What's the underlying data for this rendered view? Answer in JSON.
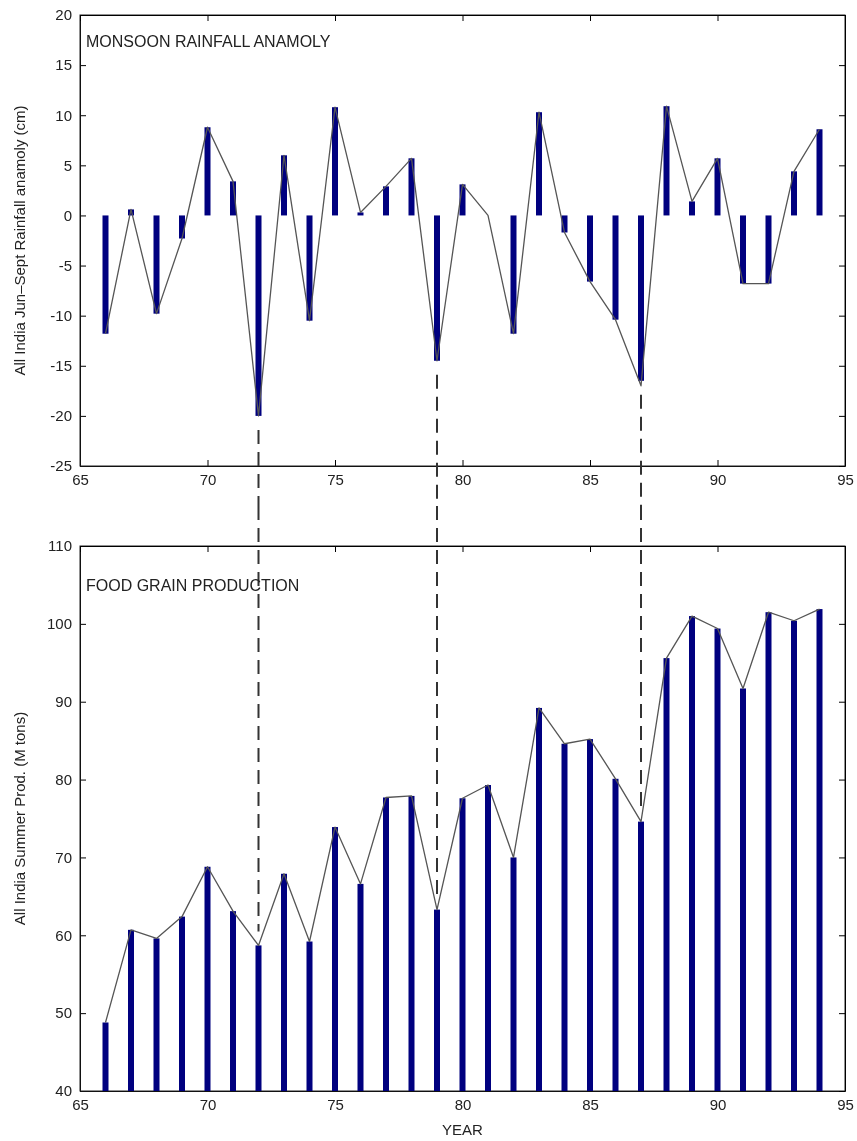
{
  "chart_data": [
    {
      "type": "bar",
      "title": "MONSOON RAINFALL ANAMOLY",
      "ylabel": "All India Jun–Sept Rainfall anamoly (cm)",
      "x": [
        66,
        67,
        68,
        69,
        70,
        71,
        72,
        73,
        74,
        75,
        76,
        77,
        78,
        79,
        80,
        81,
        82,
        83,
        84,
        85,
        86,
        87,
        88,
        89,
        90,
        91,
        92,
        93,
        94
      ],
      "xlim": [
        65,
        95
      ],
      "xticks": [
        65,
        70,
        75,
        80,
        85,
        90,
        95
      ],
      "ylim": [
        -25,
        20
      ],
      "yticks": [
        -25,
        -20,
        -15,
        -10,
        -5,
        0,
        5,
        10,
        15,
        20
      ],
      "series": [
        {
          "color": "#00007f",
          "values": [
            -11.8,
            0.6,
            -9.8,
            -2.3,
            8.8,
            3.4,
            -20,
            6,
            -10.5,
            10.8,
            0.3,
            2.9,
            5.7,
            -14.5,
            3.1,
            0,
            -11.8,
            10.3,
            -1.7,
            -6.6,
            -10.4,
            -16.5,
            10.9,
            1.4,
            5.7,
            -6.8,
            -6.8,
            4.4,
            8.6
          ]
        },
        {
          "type": "line",
          "color": "#555555",
          "values": [
            -11.8,
            0.6,
            -9.8,
            -2.3,
            8.8,
            3.4,
            -20,
            6,
            -10.5,
            10.8,
            0.3,
            2.9,
            5.7,
            -14.5,
            3.1,
            0,
            -11.8,
            10.3,
            -1.7,
            -6.6,
            -10.4,
            -17,
            10.9,
            1.4,
            5.7,
            -6.8,
            -6.8,
            4.4,
            8.6
          ]
        }
      ],
      "ref_lines": [
        {
          "axis": "x",
          "value": 72,
          "line_style": "dashed",
          "color": "#333333"
        },
        {
          "axis": "x",
          "value": 79,
          "line_style": "dashed",
          "color": "#333333"
        },
        {
          "axis": "x",
          "value": 87,
          "line_style": "dashed",
          "color": "#333333"
        }
      ]
    },
    {
      "type": "bar",
      "title": "FOOD GRAIN PRODUCTION",
      "ylabel": "All India Summer Prod. (M tons)",
      "xlabel": "YEAR",
      "x": [
        66,
        67,
        68,
        69,
        70,
        71,
        72,
        73,
        74,
        75,
        76,
        77,
        78,
        79,
        80,
        81,
        82,
        83,
        84,
        85,
        86,
        87,
        88,
        89,
        90,
        91,
        92,
        93,
        94
      ],
      "xlim": [
        65,
        95
      ],
      "xticks": [
        65,
        70,
        75,
        80,
        85,
        90,
        95
      ],
      "ylim": [
        40,
        110
      ],
      "yticks": [
        40,
        50,
        60,
        70,
        80,
        90,
        100,
        110
      ],
      "series": [
        {
          "color": "#00007f",
          "values": [
            48.8,
            60.7,
            59.6,
            62.4,
            68.8,
            63.1,
            58.7,
            67.9,
            59.2,
            73.9,
            66.6,
            77.7,
            77.9,
            63.3,
            77.6,
            79.3,
            70,
            89.2,
            84.6,
            85.2,
            80.1,
            74.6,
            95.6,
            101,
            99.4,
            91.7,
            101.5,
            100.4,
            101.9
          ]
        },
        {
          "type": "line",
          "color": "#555555",
          "values": [
            48.8,
            60.7,
            59.6,
            62.4,
            68.8,
            63.1,
            58.7,
            67.9,
            59.2,
            73.9,
            66.6,
            77.7,
            77.9,
            63.3,
            77.6,
            79.3,
            70,
            89.2,
            84.6,
            85.2,
            80.1,
            74.6,
            95.6,
            101,
            99.4,
            91.7,
            101.5,
            100.4,
            101.9
          ]
        }
      ],
      "ref_lines": [
        {
          "axis": "x",
          "value": 72,
          "line_style": "dashed",
          "color": "#333333"
        },
        {
          "axis": "x",
          "value": 79,
          "line_style": "dashed",
          "color": "#333333"
        },
        {
          "axis": "x",
          "value": 87,
          "line_style": "dashed",
          "color": "#333333"
        }
      ]
    }
  ]
}
